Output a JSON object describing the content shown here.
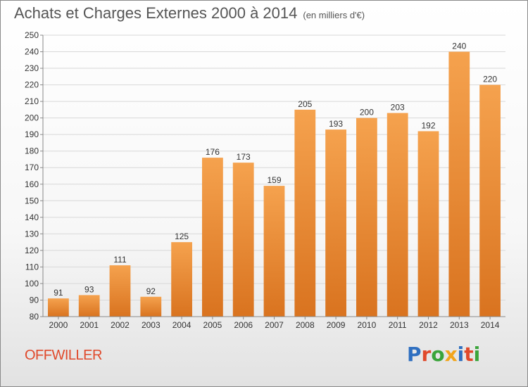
{
  "header": {
    "title": "Achats et Charges Externes 2000 à 2014",
    "unit": "(en milliers d'€)"
  },
  "footer": {
    "place": "OFFWILLER",
    "logo": "Proxiti"
  },
  "colors": {
    "bar_light": "#f5a24e",
    "bar_dark": "#d9731f",
    "place": "#e0492b",
    "logo": [
      "#2f6fc0",
      "#e0492b",
      "#3aa43a",
      "#f2a51c",
      "#2f6fc0",
      "#e0492b",
      "#3aa43a"
    ]
  },
  "chart_data": {
    "type": "bar",
    "title": "Achats et Charges Externes 2000 à 2014",
    "subtitle": "(en milliers d'€)",
    "categories": [
      "2000",
      "2001",
      "2002",
      "2003",
      "2004",
      "2005",
      "2006",
      "2007",
      "2008",
      "2009",
      "2010",
      "2011",
      "2012",
      "2013",
      "2014"
    ],
    "values": [
      91,
      93,
      111,
      92,
      125,
      176,
      173,
      159,
      205,
      193,
      200,
      203,
      192,
      240,
      220
    ],
    "ylim": [
      80,
      250
    ],
    "yticks": [
      80,
      90,
      100,
      110,
      120,
      130,
      140,
      150,
      160,
      170,
      180,
      190,
      200,
      210,
      220,
      230,
      240,
      250
    ],
    "grid": true,
    "legend": "none"
  }
}
